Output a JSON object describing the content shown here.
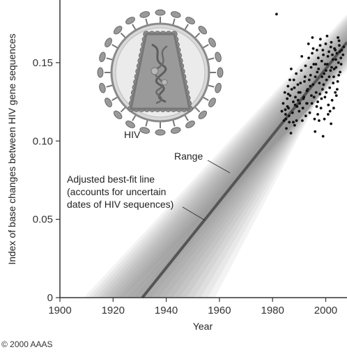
{
  "chart_data": {
    "type": "scatter",
    "xlabel": "Year",
    "ylabel": "Index of base changes between HIV gene sequences",
    "xlim": [
      1900,
      2008
    ],
    "ylim": [
      0,
      0.19
    ],
    "x_ticks": [
      "1900",
      "1920",
      "1940",
      "1960",
      "1980",
      "2000"
    ],
    "y_ticks": [
      "0",
      "0.05",
      "0.10",
      "0.15"
    ],
    "best_fit_line": {
      "x": [
        1931,
        2008
      ],
      "y": [
        0,
        0.163
      ]
    },
    "range_band": {
      "start_year": 1910,
      "end_year": 2008,
      "low_end_y": 0.145,
      "high_end_y": 0.181
    },
    "annotations": {
      "range": "Range",
      "best_fit": [
        "Adjusted best-fit line",
        "(accounts for uncertain",
        "dates of HIV sequences)"
      ],
      "virus": "HIV"
    },
    "scatter_points": [
      [
        1983.5,
        0.119
      ],
      [
        1984.0,
        0.124
      ],
      [
        1984.3,
        0.113
      ],
      [
        1984.6,
        0.131
      ],
      [
        1984.9,
        0.117
      ],
      [
        1985.2,
        0.108
      ],
      [
        1985.5,
        0.127
      ],
      [
        1985.8,
        0.135
      ],
      [
        1986.0,
        0.121
      ],
      [
        1986.3,
        0.112
      ],
      [
        1986.6,
        0.129
      ],
      [
        1986.9,
        0.105
      ],
      [
        1987.2,
        0.133
      ],
      [
        1987.5,
        0.118
      ],
      [
        1987.8,
        0.125
      ],
      [
        1988.0,
        0.139
      ],
      [
        1988.3,
        0.11
      ],
      [
        1988.6,
        0.128
      ],
      [
        1988.9,
        0.143
      ],
      [
        1989.2,
        0.122
      ],
      [
        1989.5,
        0.136
      ],
      [
        1990.0,
        0.119
      ],
      [
        1990.4,
        0.131
      ],
      [
        1990.8,
        0.145
      ],
      [
        1991.2,
        0.113
      ],
      [
        1991.6,
        0.127
      ],
      [
        1992.0,
        0.138
      ],
      [
        1992.4,
        0.148
      ],
      [
        1992.8,
        0.124
      ],
      [
        1993.2,
        0.133
      ],
      [
        1993.6,
        0.153
      ],
      [
        1994.0,
        0.118
      ],
      [
        1994.3,
        0.142
      ],
      [
        1994.6,
        0.129
      ],
      [
        1994.9,
        0.156
      ],
      [
        1995.2,
        0.136
      ],
      [
        1995.5,
        0.149
      ],
      [
        1995.8,
        0.114
      ],
      [
        1996.1,
        0.141
      ],
      [
        1996.4,
        0.131
      ],
      [
        1996.7,
        0.158
      ],
      [
        1997.0,
        0.125
      ],
      [
        1997.3,
        0.146
      ],
      [
        1997.6,
        0.137
      ],
      [
        1997.9,
        0.161
      ],
      [
        1998.2,
        0.121
      ],
      [
        1998.5,
        0.151
      ],
      [
        1998.8,
        0.133
      ],
      [
        1999.1,
        0.155
      ],
      [
        1999.4,
        0.143
      ],
      [
        1999.7,
        0.128
      ],
      [
        2000.0,
        0.162
      ],
      [
        2000.3,
        0.139
      ],
      [
        2000.6,
        0.149
      ],
      [
        2000.9,
        0.117
      ],
      [
        2001.2,
        0.157
      ],
      [
        2001.5,
        0.134
      ],
      [
        2001.8,
        0.145
      ],
      [
        2002.1,
        0.163
      ],
      [
        2002.4,
        0.126
      ],
      [
        2002.7,
        0.152
      ],
      [
        2003.0,
        0.141
      ],
      [
        2003.3,
        0.159
      ],
      [
        2003.6,
        0.131
      ],
      [
        2003.9,
        0.147
      ],
      [
        2004.2,
        0.156
      ],
      [
        2004.5,
        0.138
      ],
      [
        2004.8,
        0.15
      ],
      [
        2005.1,
        0.161
      ],
      [
        2005.4,
        0.144
      ],
      [
        2005.7,
        0.153
      ],
      [
        2006.0,
        0.158
      ],
      [
        1996.0,
        0.106
      ],
      [
        1999.0,
        0.103
      ],
      [
        2002.0,
        0.111
      ],
      [
        1991.0,
        0.154
      ],
      [
        1993.5,
        0.162
      ],
      [
        1998.0,
        0.165
      ],
      [
        2001.0,
        0.123
      ],
      [
        2004.0,
        0.129
      ],
      [
        1987.0,
        0.146
      ],
      [
        1995.0,
        0.166
      ],
      [
        2003.0,
        0.121
      ],
      [
        1989.0,
        0.113
      ],
      [
        1999.5,
        0.114
      ],
      [
        2005.0,
        0.164
      ],
      [
        1992.5,
        0.116
      ],
      [
        1997.5,
        0.113
      ],
      [
        2000.5,
        0.167
      ],
      [
        1990.5,
        0.137
      ],
      [
        2002.5,
        0.155
      ],
      [
        1994.5,
        0.147
      ],
      [
        1986.5,
        0.139
      ],
      [
        1988.5,
        0.123
      ],
      [
        2004.6,
        0.166
      ],
      [
        1996.6,
        0.122
      ],
      [
        2001.6,
        0.119
      ],
      [
        1993.0,
        0.124
      ],
      [
        1985.0,
        0.114
      ],
      [
        1998.6,
        0.141
      ],
      [
        2003.6,
        0.158
      ],
      [
        1995.6,
        0.128
      ],
      [
        2000.2,
        0.131
      ],
      [
        1997.2,
        0.153
      ],
      [
        1999.8,
        0.149
      ],
      [
        2002.8,
        0.137
      ],
      [
        1991.8,
        0.128
      ],
      [
        1989.8,
        0.131
      ],
      [
        2005.8,
        0.149
      ],
      [
        1984.8,
        0.12
      ],
      [
        1987.8,
        0.112
      ],
      [
        2001.3,
        0.141
      ],
      [
        1994.2,
        0.135
      ],
      [
        1996.8,
        0.144
      ],
      [
        2004.3,
        0.133
      ],
      [
        1992.2,
        0.141
      ],
      [
        1998.4,
        0.127
      ],
      [
        2006.5,
        0.155
      ],
      [
        2003.2,
        0.146
      ],
      [
        1990.2,
        0.124
      ],
      [
        2000.8,
        0.154
      ],
      [
        1995.3,
        0.159
      ],
      [
        1997.8,
        0.13
      ],
      [
        1993.8,
        0.139
      ],
      [
        2002.2,
        0.147
      ],
      [
        1988.2,
        0.134
      ],
      [
        1999.2,
        0.136
      ],
      [
        2001.9,
        0.16
      ],
      [
        1986.2,
        0.116
      ],
      [
        2004.9,
        0.142
      ],
      [
        1991.4,
        0.121
      ],
      [
        1996.3,
        0.149
      ],
      [
        2005.3,
        0.157
      ],
      [
        1985.6,
        0.122
      ],
      [
        1994.8,
        0.124
      ],
      [
        1998.9,
        0.158
      ],
      [
        1981.5,
        0.181
      ],
      [
        2000.1,
        0.145
      ],
      [
        2003.8,
        0.152
      ],
      [
        1989.6,
        0.126
      ],
      [
        1997.0,
        0.117
      ],
      [
        1992.9,
        0.132
      ],
      [
        2006.8,
        0.16
      ],
      [
        1985.9,
        0.13
      ]
    ]
  },
  "credit": "© 2000 AAAS"
}
